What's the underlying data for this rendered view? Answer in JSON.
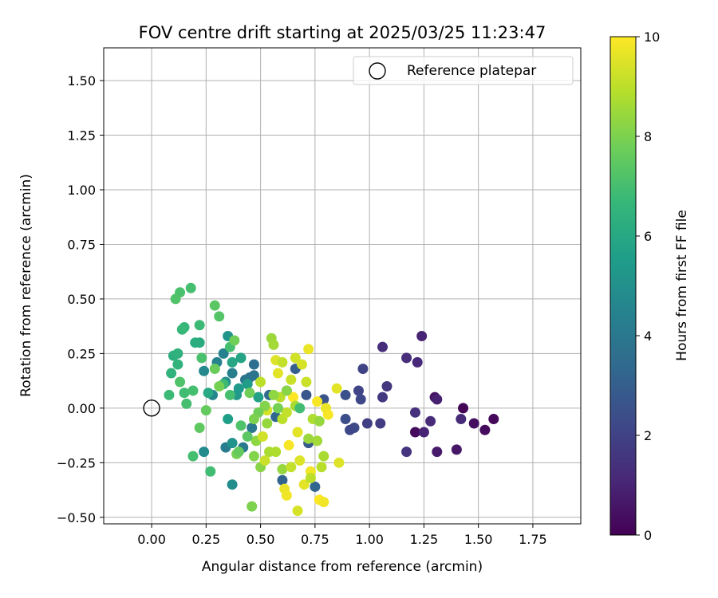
{
  "chart_data": {
    "type": "scatter",
    "title": "FOV centre drift starting at 2025/03/25 11:23:47",
    "xlabel": "Angular distance from reference (arcmin)",
    "ylabel": "Rotation from reference (arcmin)",
    "xlim": [
      -0.22,
      1.97
    ],
    "ylim": [
      -0.53,
      1.65
    ],
    "xticks": [
      "0.00",
      "0.25",
      "0.50",
      "0.75",
      "1.00",
      "1.25",
      "1.50",
      "1.75"
    ],
    "xtick_values": [
      0,
      0.25,
      0.5,
      0.75,
      1.0,
      1.25,
      1.5,
      1.75
    ],
    "yticks": [
      "−0.50",
      "−0.25",
      "0.00",
      "0.25",
      "0.50",
      "0.75",
      "1.00",
      "1.25",
      "1.50"
    ],
    "ytick_values": [
      -0.5,
      -0.25,
      0,
      0.25,
      0.5,
      0.75,
      1.0,
      1.25,
      1.5
    ],
    "grid": true,
    "legend": {
      "placement": "top-right",
      "entries": [
        {
          "label": "Reference platepar",
          "marker": "open-circle"
        }
      ]
    },
    "reference_point": {
      "x": 0.0,
      "y": 0.0
    },
    "colorbar": {
      "label": "Hours from first FF file",
      "range": [
        0,
        10
      ],
      "ticks": [
        "0",
        "2",
        "4",
        "6",
        "8",
        "10"
      ],
      "tick_values": [
        0,
        2,
        4,
        6,
        8,
        10
      ],
      "colormap": "viridis",
      "stops": [
        "#440154",
        "#482878",
        "#3e4989",
        "#31688e",
        "#26828e",
        "#1f9e89",
        "#35b779",
        "#6ece58",
        "#b5de2b",
        "#fde725"
      ]
    },
    "points": [
      {
        "x": 1.43,
        "y": 0.0,
        "h": 0.1
      },
      {
        "x": 1.57,
        "y": -0.05,
        "h": 0.2
      },
      {
        "x": 1.53,
        "y": -0.1,
        "h": 0.3
      },
      {
        "x": 1.48,
        "y": -0.07,
        "h": 0.4
      },
      {
        "x": 1.4,
        "y": -0.19,
        "h": 0.6
      },
      {
        "x": 1.31,
        "y": -0.2,
        "h": 0.7
      },
      {
        "x": 1.3,
        "y": 0.05,
        "h": 0.5
      },
      {
        "x": 1.31,
        "y": 0.04,
        "h": 0.9
      },
      {
        "x": 1.21,
        "y": -0.11,
        "h": 0.3
      },
      {
        "x": 1.25,
        "y": -0.11,
        "h": 1.0
      },
      {
        "x": 1.28,
        "y": -0.06,
        "h": 1.2
      },
      {
        "x": 1.24,
        "y": 0.33,
        "h": 1.0
      },
      {
        "x": 1.22,
        "y": 0.21,
        "h": 1.1
      },
      {
        "x": 1.17,
        "y": 0.23,
        "h": 1.3
      },
      {
        "x": 1.21,
        "y": -0.02,
        "h": 1.4
      },
      {
        "x": 1.17,
        "y": -0.2,
        "h": 1.5
      },
      {
        "x": 1.42,
        "y": -0.05,
        "h": 1.2
      },
      {
        "x": 1.06,
        "y": 0.28,
        "h": 1.3
      },
      {
        "x": 1.08,
        "y": 0.1,
        "h": 1.6
      },
      {
        "x": 1.06,
        "y": 0.05,
        "h": 1.7
      },
      {
        "x": 1.05,
        "y": -0.07,
        "h": 1.8
      },
      {
        "x": 0.99,
        "y": -0.07,
        "h": 1.9
      },
      {
        "x": 0.97,
        "y": 0.18,
        "h": 2.0
      },
      {
        "x": 0.95,
        "y": 0.08,
        "h": 2.1
      },
      {
        "x": 0.96,
        "y": 0.04,
        "h": 2.2
      },
      {
        "x": 0.93,
        "y": -0.09,
        "h": 2.3
      },
      {
        "x": 0.91,
        "y": -0.1,
        "h": 2.2
      },
      {
        "x": 0.89,
        "y": -0.05,
        "h": 2.4
      },
      {
        "x": 0.89,
        "y": 0.06,
        "h": 2.5
      },
      {
        "x": 0.79,
        "y": 0.04,
        "h": 2.6
      },
      {
        "x": 0.71,
        "y": 0.06,
        "h": 2.7
      },
      {
        "x": 0.72,
        "y": -0.16,
        "h": 2.8
      },
      {
        "x": 0.66,
        "y": 0.18,
        "h": 3.0
      },
      {
        "x": 0.62,
        "y": 0.08,
        "h": 3.1
      },
      {
        "x": 0.6,
        "y": -0.33,
        "h": 3.2
      },
      {
        "x": 0.57,
        "y": -0.04,
        "h": 3.3
      },
      {
        "x": 0.54,
        "y": 0.06,
        "h": 3.4
      },
      {
        "x": 0.75,
        "y": -0.36,
        "h": 3.3
      },
      {
        "x": 0.47,
        "y": 0.2,
        "h": 3.6
      },
      {
        "x": 0.45,
        "y": 0.14,
        "h": 3.7
      },
      {
        "x": 0.47,
        "y": 0.15,
        "h": 3.8
      },
      {
        "x": 0.43,
        "y": 0.13,
        "h": 3.9
      },
      {
        "x": 0.46,
        "y": -0.09,
        "h": 4.0
      },
      {
        "x": 0.42,
        "y": -0.18,
        "h": 4.1
      },
      {
        "x": 0.34,
        "y": -0.18,
        "h": 4.2
      },
      {
        "x": 0.37,
        "y": 0.16,
        "h": 4.3
      },
      {
        "x": 0.33,
        "y": 0.25,
        "h": 4.4
      },
      {
        "x": 0.3,
        "y": 0.21,
        "h": 4.5
      },
      {
        "x": 0.28,
        "y": 0.06,
        "h": 4.6
      },
      {
        "x": 0.24,
        "y": 0.17,
        "h": 4.7
      },
      {
        "x": 0.24,
        "y": -0.2,
        "h": 4.8
      },
      {
        "x": 0.37,
        "y": -0.35,
        "h": 4.9
      },
      {
        "x": 0.34,
        "y": 0.12,
        "h": 5.0
      },
      {
        "x": 0.37,
        "y": -0.16,
        "h": 5.1
      },
      {
        "x": 0.35,
        "y": 0.33,
        "h": 5.2
      },
      {
        "x": 0.39,
        "y": 0.06,
        "h": 5.3
      },
      {
        "x": 0.4,
        "y": 0.09,
        "h": 5.4
      },
      {
        "x": 0.44,
        "y": 0.11,
        "h": 5.5
      },
      {
        "x": 0.35,
        "y": -0.05,
        "h": 5.6
      },
      {
        "x": 0.49,
        "y": 0.05,
        "h": 5.7
      },
      {
        "x": 0.41,
        "y": 0.23,
        "h": 5.8
      },
      {
        "x": 0.37,
        "y": 0.21,
        "h": 5.9
      },
      {
        "x": 0.26,
        "y": 0.07,
        "h": 6.0
      },
      {
        "x": 0.22,
        "y": 0.3,
        "h": 6.1
      },
      {
        "x": 0.2,
        "y": 0.3,
        "h": 6.2
      },
      {
        "x": 0.1,
        "y": 0.24,
        "h": 6.3
      },
      {
        "x": 0.12,
        "y": 0.25,
        "h": 6.4
      },
      {
        "x": 0.12,
        "y": 0.2,
        "h": 6.5
      },
      {
        "x": 0.15,
        "y": 0.37,
        "h": 6.6
      },
      {
        "x": 0.14,
        "y": 0.36,
        "h": 6.7
      },
      {
        "x": 0.08,
        "y": 0.06,
        "h": 6.8
      },
      {
        "x": 0.15,
        "y": 0.07,
        "h": 6.9
      },
      {
        "x": 0.16,
        "y": 0.02,
        "h": 7.0
      },
      {
        "x": 0.09,
        "y": 0.16,
        "h": 6.5
      },
      {
        "x": 0.18,
        "y": 0.55,
        "h": 7.0
      },
      {
        "x": 0.13,
        "y": 0.53,
        "h": 7.1
      },
      {
        "x": 0.11,
        "y": 0.5,
        "h": 7.2
      },
      {
        "x": 0.22,
        "y": 0.38,
        "h": 6.8
      },
      {
        "x": 0.31,
        "y": 0.42,
        "h": 7.3
      },
      {
        "x": 0.29,
        "y": 0.47,
        "h": 7.4
      },
      {
        "x": 0.19,
        "y": 0.08,
        "h": 7.0
      },
      {
        "x": 0.23,
        "y": 0.23,
        "h": 7.1
      },
      {
        "x": 0.27,
        "y": -0.29,
        "h": 6.9
      },
      {
        "x": 0.19,
        "y": -0.22,
        "h": 7.0
      },
      {
        "x": 0.13,
        "y": 0.12,
        "h": 7.2
      },
      {
        "x": 0.22,
        "y": -0.09,
        "h": 7.5
      },
      {
        "x": 0.25,
        "y": -0.01,
        "h": 7.6
      },
      {
        "x": 0.29,
        "y": 0.18,
        "h": 7.7
      },
      {
        "x": 0.36,
        "y": 0.28,
        "h": 7.0
      },
      {
        "x": 0.38,
        "y": 0.31,
        "h": 7.8
      },
      {
        "x": 0.39,
        "y": -0.21,
        "h": 7.9
      },
      {
        "x": 0.4,
        "y": -0.2,
        "h": 7.6
      },
      {
        "x": 0.45,
        "y": 0.07,
        "h": 7.8
      },
      {
        "x": 0.46,
        "y": -0.45,
        "h": 8.0
      },
      {
        "x": 0.47,
        "y": -0.22,
        "h": 8.1
      },
      {
        "x": 0.5,
        "y": -0.27,
        "h": 8.2
      },
      {
        "x": 0.48,
        "y": -0.15,
        "h": 8.3
      },
      {
        "x": 0.53,
        "y": -0.07,
        "h": 8.4
      },
      {
        "x": 0.55,
        "y": 0.32,
        "h": 8.5
      },
      {
        "x": 0.56,
        "y": 0.29,
        "h": 8.6
      },
      {
        "x": 0.54,
        "y": -0.2,
        "h": 8.7
      },
      {
        "x": 0.57,
        "y": -0.2,
        "h": 8.8
      },
      {
        "x": 0.59,
        "y": 0.05,
        "h": 8.9
      },
      {
        "x": 0.6,
        "y": -0.05,
        "h": 9.0
      },
      {
        "x": 0.62,
        "y": -0.02,
        "h": 9.1
      },
      {
        "x": 0.64,
        "y": 0.13,
        "h": 9.2
      },
      {
        "x": 0.66,
        "y": 0.23,
        "h": 9.3
      },
      {
        "x": 0.67,
        "y": -0.47,
        "h": 9.4
      },
      {
        "x": 0.68,
        "y": -0.24,
        "h": 9.5
      },
      {
        "x": 0.7,
        "y": -0.35,
        "h": 9.6
      },
      {
        "x": 0.72,
        "y": 0.27,
        "h": 9.7
      },
      {
        "x": 0.73,
        "y": -0.29,
        "h": 9.8
      },
      {
        "x": 0.76,
        "y": 0.03,
        "h": 9.9
      },
      {
        "x": 0.77,
        "y": -0.42,
        "h": 10.0
      },
      {
        "x": 0.79,
        "y": -0.43,
        "h": 9.8
      },
      {
        "x": 0.8,
        "y": 0.0,
        "h": 9.7
      },
      {
        "x": 0.81,
        "y": -0.03,
        "h": 9.9
      },
      {
        "x": 0.85,
        "y": 0.09,
        "h": 9.6
      },
      {
        "x": 0.86,
        "y": -0.25,
        "h": 9.5
      },
      {
        "x": 0.5,
        "y": 0.12,
        "h": 9.0
      },
      {
        "x": 0.52,
        "y": -0.24,
        "h": 9.2
      },
      {
        "x": 0.51,
        "y": -0.13,
        "h": 9.3
      },
      {
        "x": 0.53,
        "y": -0.01,
        "h": 9.4
      },
      {
        "x": 0.57,
        "y": 0.22,
        "h": 9.5
      },
      {
        "x": 0.58,
        "y": 0.16,
        "h": 9.6
      },
      {
        "x": 0.6,
        "y": 0.21,
        "h": 9.1
      },
      {
        "x": 0.61,
        "y": -0.37,
        "h": 9.7
      },
      {
        "x": 0.62,
        "y": -0.4,
        "h": 9.8
      },
      {
        "x": 0.63,
        "y": -0.17,
        "h": 9.9
      },
      {
        "x": 0.65,
        "y": 0.05,
        "h": 10.0
      },
      {
        "x": 0.67,
        "y": -0.11,
        "h": 9.6
      },
      {
        "x": 0.69,
        "y": 0.2,
        "h": 9.4
      },
      {
        "x": 0.71,
        "y": 0.12,
        "h": 9.2
      },
      {
        "x": 0.73,
        "y": -0.32,
        "h": 9.0
      },
      {
        "x": 0.74,
        "y": -0.05,
        "h": 8.8
      },
      {
        "x": 0.76,
        "y": -0.15,
        "h": 8.6
      },
      {
        "x": 0.77,
        "y": -0.06,
        "h": 8.4
      },
      {
        "x": 0.78,
        "y": -0.27,
        "h": 8.9
      },
      {
        "x": 0.79,
        "y": -0.22,
        "h": 8.7
      },
      {
        "x": 0.72,
        "y": -0.14,
        "h": 8.5
      },
      {
        "x": 0.62,
        "y": 0.08,
        "h": 8.2
      },
      {
        "x": 0.58,
        "y": 0.0,
        "h": 7.9
      },
      {
        "x": 0.56,
        "y": 0.06,
        "h": 8.3
      },
      {
        "x": 0.52,
        "y": 0.01,
        "h": 8.1
      },
      {
        "x": 0.49,
        "y": -0.02,
        "h": 7.8
      },
      {
        "x": 0.47,
        "y": -0.05,
        "h": 8.0
      },
      {
        "x": 0.44,
        "y": -0.13,
        "h": 7.4
      },
      {
        "x": 0.41,
        "y": -0.08,
        "h": 7.2
      },
      {
        "x": 0.36,
        "y": 0.06,
        "h": 7.0
      },
      {
        "x": 0.33,
        "y": 0.11,
        "h": 6.8
      },
      {
        "x": 0.31,
        "y": 0.1,
        "h": 7.9
      },
      {
        "x": 0.6,
        "y": -0.28,
        "h": 8.4
      },
      {
        "x": 0.64,
        "y": -0.27,
        "h": 9.1
      },
      {
        "x": 0.66,
        "y": 0.01,
        "h": 8.7
      },
      {
        "x": 0.68,
        "y": 0.0,
        "h": 6.9
      }
    ]
  }
}
